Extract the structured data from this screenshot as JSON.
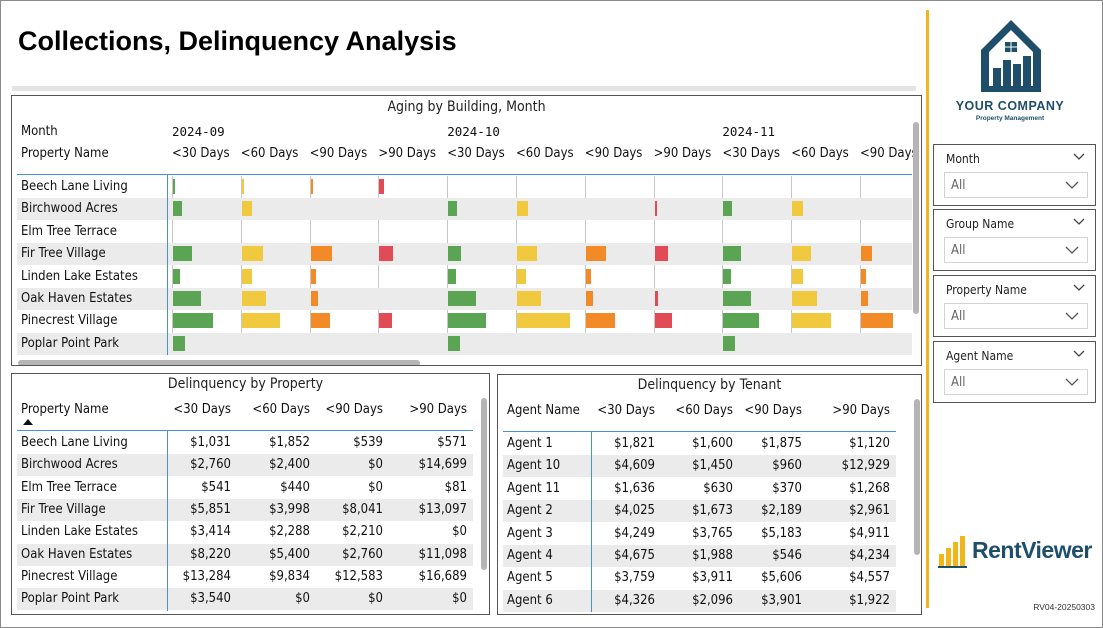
{
  "page": {
    "title": "Collections, Delinquency Analysis",
    "version": "RV04-20250303"
  },
  "brand": {
    "company_name": "YOUR COMPANY",
    "company_sub": "Property Management",
    "product_name": "RentViewer",
    "accent": "#f2b51a",
    "navy": "#1f4e6b"
  },
  "aging_chart": {
    "title": "Aging by Building, Month",
    "month_label": "Month",
    "property_label": "Property Name",
    "months": [
      "2024-09",
      "2024-10",
      "2024-11"
    ],
    "buckets": [
      "<30 Days",
      "<60 Days",
      "<90 Days",
      ">90 Days"
    ],
    "visible_columns": [
      {
        "month": "2024-09",
        "bucket": "<30 Days"
      },
      {
        "month": "2024-09",
        "bucket": "<60 Days"
      },
      {
        "month": "2024-09",
        "bucket": "<90 Days"
      },
      {
        "month": "2024-09",
        "bucket": ">90 Days"
      },
      {
        "month": "2024-10",
        "bucket": "<30 Days"
      },
      {
        "month": "2024-10",
        "bucket": "<60 Days"
      },
      {
        "month": "2024-10",
        "bucket": "<90 Days"
      },
      {
        "month": "2024-10",
        "bucket": ">90 Days"
      },
      {
        "month": "2024-11",
        "bucket": "<30 Days"
      },
      {
        "month": "2024-11",
        "bucket": "<60 Days"
      },
      {
        "month": "2024-11",
        "bucket": "<90 Days"
      }
    ],
    "column_labels": [
      "<30 Days",
      "<60 Days",
      "<90 Days",
      ">90 Days",
      "<30 Days",
      "<60 Days",
      "<90 Days",
      ">90 Days",
      "<30 Days",
      "<60 Days",
      "<90 Days"
    ],
    "bucket_colors": [
      "#5aa454",
      "#f0c93f",
      "#f18a27",
      "#e04b55"
    ],
    "rows": [
      {
        "name": "Beech Lane Living",
        "values": [
          0.01,
          0.02,
          0.02,
          0.07,
          0,
          0,
          0,
          0,
          0,
          0,
          0
        ]
      },
      {
        "name": "Birchwood Acres",
        "values": [
          0.15,
          0.17,
          0,
          0,
          0.14,
          0.17,
          0,
          0.02,
          0.14,
          0.18,
          0
        ]
      },
      {
        "name": "Elm Tree Terrace",
        "values": [
          0,
          0,
          0,
          0,
          0,
          0,
          0,
          0,
          0,
          0,
          0
        ]
      },
      {
        "name": "Fir Tree Village",
        "values": [
          0.3,
          0.34,
          0.35,
          0.22,
          0.2,
          0.32,
          0.32,
          0.22,
          0.29,
          0.3,
          0.18
        ]
      },
      {
        "name": "Linden Lake Estates",
        "values": [
          0.11,
          0.16,
          0.09,
          0,
          0.13,
          0.15,
          0.09,
          0,
          0.13,
          0.17,
          0.08
        ]
      },
      {
        "name": "Oak Haven Estates",
        "values": [
          0.45,
          0.39,
          0.12,
          0,
          0.45,
          0.38,
          0.12,
          0.05,
          0.44,
          0.4,
          0.12
        ]
      },
      {
        "name": "Pinecrest Village",
        "values": [
          0.65,
          0.62,
          0.32,
          0.2,
          0.61,
          0.85,
          0.47,
          0.28,
          0.58,
          0.62,
          0.52
        ]
      },
      {
        "name": "Poplar Point Park",
        "values": [
          0.19,
          0,
          0,
          0,
          0.19,
          0,
          0,
          0,
          0.19,
          0,
          0
        ]
      }
    ]
  },
  "property_table": {
    "title": "Delinquency by Property",
    "columns": [
      "Property Name",
      "<30 Days",
      "<60 Days",
      "<90 Days",
      ">90 Days"
    ],
    "rows": [
      [
        "Beech Lane Living",
        "$1,031",
        "$1,852",
        "$539",
        "$571"
      ],
      [
        "Birchwood Acres",
        "$2,760",
        "$2,400",
        "$0",
        "$14,699"
      ],
      [
        "Elm Tree Terrace",
        "$541",
        "$440",
        "$0",
        "$81"
      ],
      [
        "Fir Tree Village",
        "$5,851",
        "$3,998",
        "$8,041",
        "$13,097"
      ],
      [
        "Linden Lake Estates",
        "$3,414",
        "$2,288",
        "$2,210",
        "$0"
      ],
      [
        "Oak Haven Estates",
        "$8,220",
        "$5,400",
        "$2,760",
        "$11,098"
      ],
      [
        "Pinecrest Village",
        "$13,284",
        "$9,834",
        "$12,583",
        "$16,689"
      ],
      [
        "Poplar Point Park",
        "$3,540",
        "$0",
        "$0",
        "$0"
      ]
    ]
  },
  "tenant_table": {
    "title": "Delinquency by Tenant",
    "columns": [
      "Agent Name",
      "<30 Days",
      "<60 Days",
      "<90 Days",
      ">90 Days"
    ],
    "rows": [
      [
        "Agent 1",
        "$1,821",
        "$1,600",
        "$1,875",
        "$1,120"
      ],
      [
        "Agent 10",
        "$4,609",
        "$1,450",
        "$960",
        "$12,929"
      ],
      [
        "Agent 11",
        "$1,636",
        "$630",
        "$370",
        "$1,268"
      ],
      [
        "Agent 2",
        "$4,025",
        "$1,673",
        "$2,189",
        "$2,961"
      ],
      [
        "Agent 3",
        "$4,249",
        "$3,765",
        "$5,183",
        "$4,911"
      ],
      [
        "Agent 4",
        "$4,675",
        "$1,988",
        "$546",
        "$4,234"
      ],
      [
        "Agent 5",
        "$3,759",
        "$3,911",
        "$5,606",
        "$4,557"
      ],
      [
        "Agent 6",
        "$4,326",
        "$2,096",
        "$3,901",
        "$1,922"
      ]
    ]
  },
  "slicers": [
    {
      "label": "Month",
      "value": "All"
    },
    {
      "label": "Group Name",
      "value": "All"
    },
    {
      "label": "Property Name",
      "value": "All"
    },
    {
      "label": "Agent Name",
      "value": "All"
    }
  ]
}
